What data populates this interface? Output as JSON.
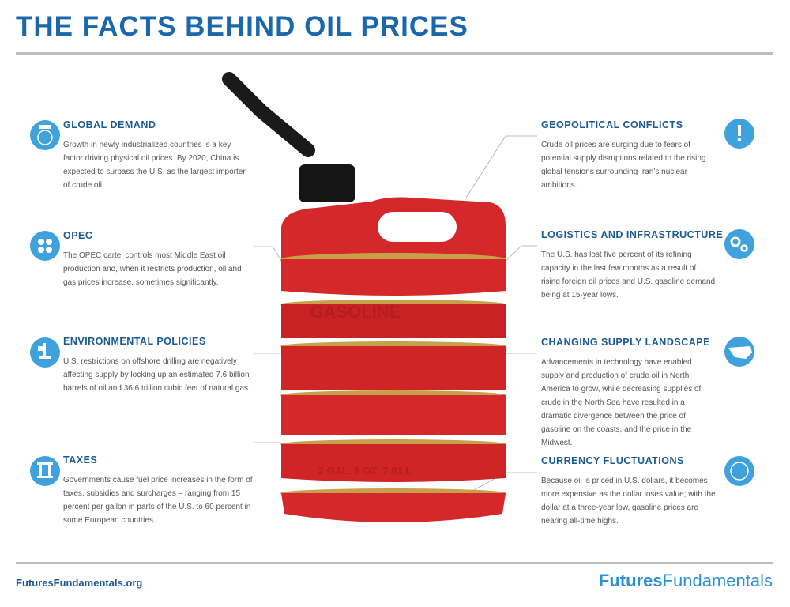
{
  "header": {
    "title": "THE FACTS BEHIND OIL PRICES"
  },
  "left_items": [
    {
      "title": "GLOBAL DEMAND",
      "text": "Growth in newly industrialized countries is a key factor driving physical oil prices. By 2020, China is expected to surpass the U.S. as the largest importer of crude oil."
    },
    {
      "title": "OPEC",
      "text": "The OPEC cartel controls most Middle East oil production and, when it restricts production, oil and gas prices increase, sometimes significantly."
    },
    {
      "title": "ENVIRONMENTAL POLICIES",
      "text": "U.S. restrictions on offshore drilling are negatively affecting supply by locking up an estimated 7.6 billion barrels of oil and 36.6 trillion cubic feet of natural gas."
    },
    {
      "title": "TAXES",
      "text": "Governments cause fuel price increases in the form of taxes, subsidies and surcharges – ranging from 15 percent per gallon in parts of the U.S. to 60 percent in some European countries."
    }
  ],
  "right_items": [
    {
      "title": "GEOPOLITICAL CONFLICTS",
      "text": "Crude oil prices are surging due to fears of potential supply disruptions related to the rising global tensions surrounding Iran’s nuclear ambitions."
    },
    {
      "title": "LOGISTICS AND INFRASTRUCTURE",
      "text": "The U.S. has lost five percent of its refining capacity in the last few months as a result of rising foreign oil prices and U.S. gasoline demand being at 15-year lows."
    },
    {
      "title": "CHANGING SUPPLY LANDSCAPE",
      "text": "Advancements in technology have enabled supply and production of crude oil in North America to grow, while decreasing supplies of crude in the North Sea have resulted in a dramatic divergence between the price of gasoline on the coasts, and the price in the Midwest."
    },
    {
      "title": "CURRENCY FLUCTUATIONS",
      "text": "Because oil is priced in U.S. dollars, it becomes more expensive as the dollar loses value; with the dollar at a three-year low, gasoline prices are nearing all-time highs."
    }
  ],
  "can": {
    "label": "GASOLINE",
    "capacity": "2 GAL. 8 OZ. 7.81 L"
  },
  "footer": {
    "url": "FuturesFundamentals.org",
    "brand_bold": "Futures",
    "brand_light": "Fundamentals"
  }
}
